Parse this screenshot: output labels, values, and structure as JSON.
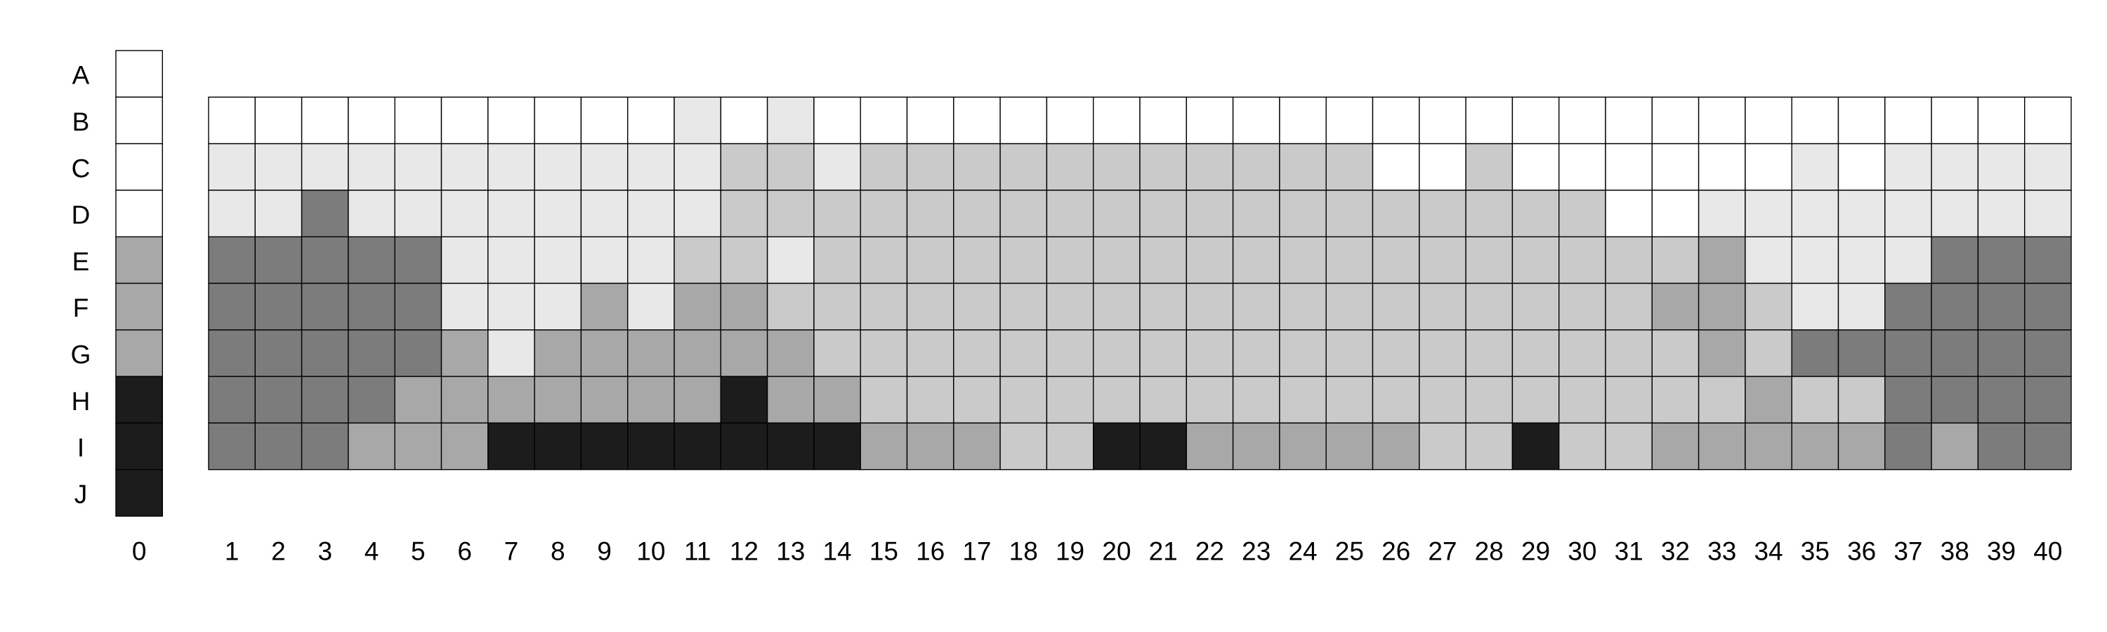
{
  "chart_data": {
    "type": "heatmap",
    "title": "",
    "xlabel": "",
    "ylabel": "",
    "rows": [
      "A",
      "B",
      "C",
      "D",
      "E",
      "F",
      "G",
      "H",
      "I",
      "J"
    ],
    "reference": {
      "label": "0",
      "values": [
        0,
        0,
        0,
        0,
        3,
        3,
        3,
        5,
        5,
        5
      ]
    },
    "grid": {
      "rows": [
        "B",
        "C",
        "D",
        "E",
        "F",
        "G",
        "H",
        "I"
      ],
      "columns": [
        "1",
        "2",
        "3",
        "4",
        "5",
        "6",
        "7",
        "8",
        "9",
        "10",
        "11",
        "12",
        "13",
        "14",
        "15",
        "16",
        "17",
        "18",
        "19",
        "20",
        "21",
        "22",
        "23",
        "24",
        "25",
        "26",
        "27",
        "28",
        "29",
        "30",
        "31",
        "32",
        "33",
        "34",
        "35",
        "36",
        "37",
        "38",
        "39",
        "40"
      ],
      "values": [
        [
          0,
          0,
          0,
          0,
          0,
          0,
          0,
          0,
          0,
          0,
          1,
          0,
          1,
          0,
          0,
          0,
          0,
          0,
          0,
          0,
          0,
          0,
          0,
          0,
          0,
          0,
          0,
          0,
          0,
          0,
          0,
          0,
          0,
          0,
          0,
          0,
          0,
          0,
          0,
          0
        ],
        [
          1,
          1,
          1,
          1,
          1,
          1,
          1,
          1,
          1,
          1,
          1,
          2,
          2,
          1,
          2,
          2,
          2,
          2,
          2,
          2,
          2,
          2,
          2,
          2,
          2,
          0,
          0,
          2,
          0,
          0,
          0,
          0,
          0,
          0,
          1,
          0,
          1,
          1,
          1,
          1
        ],
        [
          1,
          1,
          4,
          1,
          1,
          1,
          1,
          1,
          1,
          1,
          1,
          2,
          2,
          2,
          2,
          2,
          2,
          2,
          2,
          2,
          2,
          2,
          2,
          2,
          2,
          2,
          2,
          2,
          2,
          2,
          0,
          0,
          1,
          1,
          1,
          1,
          1,
          1,
          1,
          1
        ],
        [
          4,
          4,
          4,
          4,
          4,
          1,
          1,
          1,
          1,
          1,
          2,
          2,
          1,
          2,
          2,
          2,
          2,
          2,
          2,
          2,
          2,
          2,
          2,
          2,
          2,
          2,
          2,
          2,
          2,
          2,
          2,
          2,
          3,
          1,
          1,
          1,
          1,
          4,
          4,
          4
        ],
        [
          4,
          4,
          4,
          4,
          4,
          1,
          1,
          1,
          3,
          1,
          3,
          3,
          2,
          2,
          2,
          2,
          2,
          2,
          2,
          2,
          2,
          2,
          2,
          2,
          2,
          2,
          2,
          2,
          2,
          2,
          2,
          3,
          3,
          2,
          1,
          1,
          4,
          4,
          4,
          4
        ],
        [
          4,
          4,
          4,
          4,
          4,
          3,
          1,
          3,
          3,
          3,
          3,
          3,
          3,
          2,
          2,
          2,
          2,
          2,
          2,
          2,
          2,
          2,
          2,
          2,
          2,
          2,
          2,
          2,
          2,
          2,
          2,
          2,
          3,
          2,
          4,
          4,
          4,
          4,
          4,
          4
        ],
        [
          4,
          4,
          4,
          4,
          3,
          3,
          3,
          3,
          3,
          3,
          3,
          5,
          3,
          3,
          2,
          2,
          2,
          2,
          2,
          2,
          2,
          2,
          2,
          2,
          2,
          2,
          2,
          2,
          2,
          2,
          2,
          2,
          2,
          3,
          2,
          2,
          4,
          4,
          4,
          4
        ],
        [
          4,
          4,
          4,
          3,
          3,
          3,
          5,
          5,
          5,
          5,
          5,
          5,
          5,
          5,
          3,
          3,
          3,
          2,
          2,
          5,
          5,
          3,
          3,
          3,
          3,
          3,
          2,
          2,
          5,
          2,
          2,
          3,
          3,
          3,
          3,
          3,
          4,
          3,
          4,
          4
        ]
      ]
    },
    "color_levels": [
      "#ffffff",
      "#e8e8e8",
      "#cacaca",
      "#a8a8a8",
      "#7c7c7c",
      "#1c1c1c"
    ],
    "grid_lines": true,
    "legend": "none"
  }
}
